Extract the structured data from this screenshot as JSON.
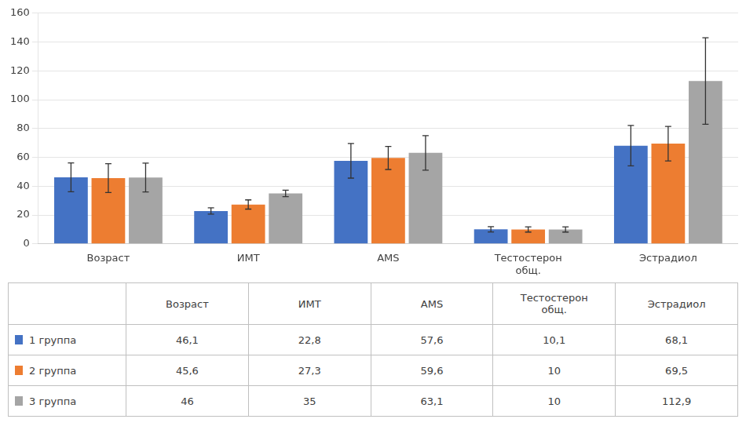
{
  "chart_data": {
    "type": "bar",
    "categories": [
      "Возраст",
      "ИМТ",
      "AMS",
      "Тестостерон\nобщ.",
      "Эстрадиол"
    ],
    "series": [
      {
        "name": "1 группа",
        "color": "#4472C4",
        "values": [
          46.1,
          22.8,
          57.6,
          10.1,
          68.1
        ],
        "errors": [
          10.0,
          2.2,
          12.0,
          1.8,
          14.0
        ],
        "value_labels": [
          "46,1",
          "22,8",
          "57,6",
          "10,1",
          "68,1"
        ]
      },
      {
        "name": "2 группа",
        "color": "#ED7D31",
        "values": [
          45.6,
          27.3,
          59.6,
          10.0,
          69.5
        ],
        "errors": [
          10.0,
          3.2,
          8.0,
          1.8,
          12.0
        ],
        "value_labels": [
          "45,6",
          "27,3",
          "59,6",
          "10",
          "69,5"
        ]
      },
      {
        "name": "3 группа",
        "color": "#A5A5A5",
        "values": [
          46.0,
          35.0,
          63.1,
          10.0,
          112.9
        ],
        "errors": [
          10.0,
          2.2,
          12.0,
          1.8,
          30.0
        ],
        "value_labels": [
          "46",
          "35",
          "63,1",
          "10",
          "112,9"
        ]
      }
    ],
    "ylim": [
      0,
      160
    ],
    "yticks": [
      0,
      20,
      40,
      60,
      80,
      100,
      120,
      140,
      160
    ],
    "grid": true
  }
}
